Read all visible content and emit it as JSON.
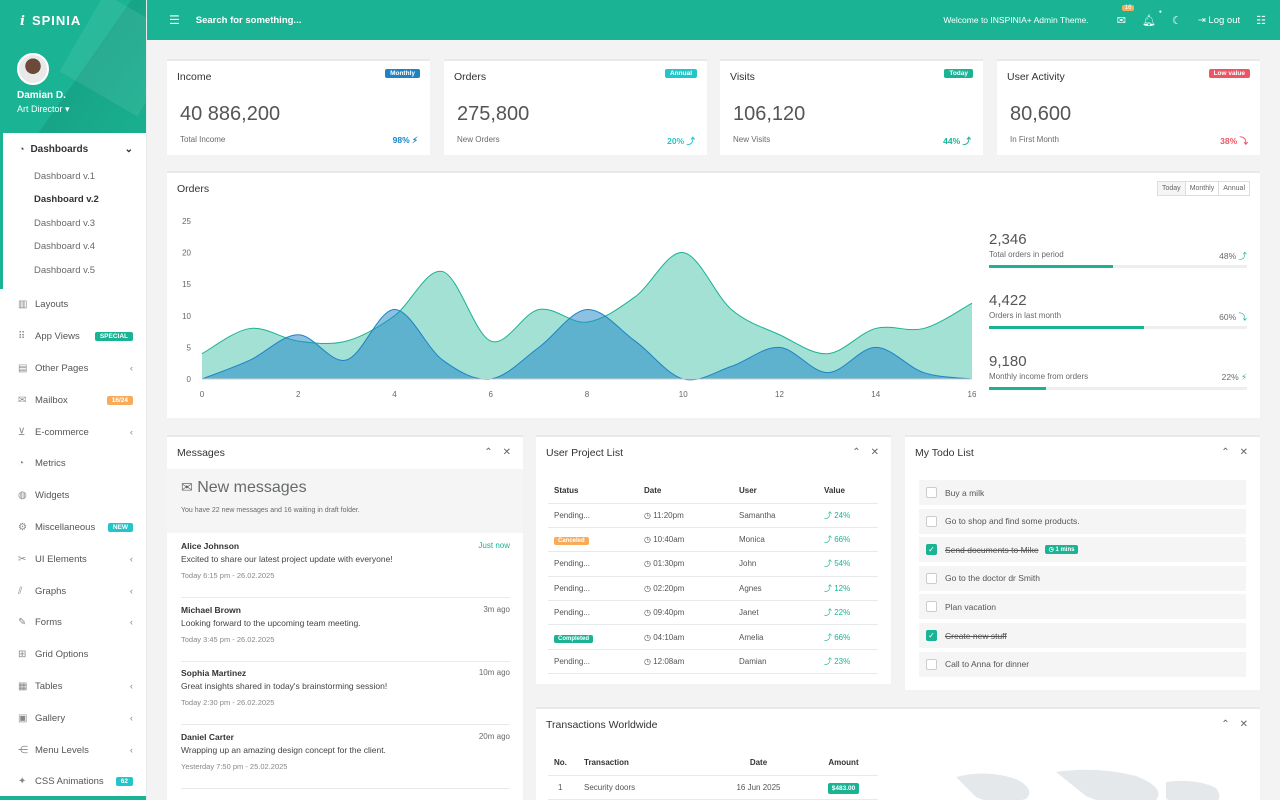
{
  "brand": {
    "name": "SPINIA",
    "mark": "i"
  },
  "user": {
    "name": "Damian D.",
    "role": "Art Director"
  },
  "nav": {
    "group": {
      "label": "Dashboards",
      "items": [
        "Dashboard v.1",
        "Dashboard v.2",
        "Dashboard v.3",
        "Dashboard v.4",
        "Dashboard v.5"
      ],
      "active": "Dashboard v.2"
    },
    "items": [
      {
        "label": "Layouts",
        "icon": "layouts-icon"
      },
      {
        "label": "App Views",
        "icon": "apps-grid-icon",
        "badge": "SPECIAL",
        "badge_color": "#1ab394"
      },
      {
        "label": "Other Pages",
        "icon": "page-icon",
        "chevron": true
      },
      {
        "label": "Mailbox",
        "icon": "mail-icon",
        "badge": "16/24",
        "badge_color": "#f8ac59"
      },
      {
        "label": "E-commerce",
        "icon": "cart-icon",
        "chevron": true
      },
      {
        "label": "Metrics",
        "icon": "pie-icon"
      },
      {
        "label": "Widgets",
        "icon": "globe-icon"
      },
      {
        "label": "Miscellaneous",
        "icon": "gear-icon",
        "badge": "NEW",
        "badge_color": "#23c6c8"
      },
      {
        "label": "UI Elements",
        "icon": "tools-icon",
        "chevron": true
      },
      {
        "label": "Graphs",
        "icon": "chart-icon",
        "chevron": true
      },
      {
        "label": "Forms",
        "icon": "form-icon",
        "chevron": true
      },
      {
        "label": "Grid Options",
        "icon": "grid-icon"
      },
      {
        "label": "Tables",
        "icon": "table-icon",
        "chevron": true
      },
      {
        "label": "Gallery",
        "icon": "image-icon",
        "chevron": true
      },
      {
        "label": "Menu Levels",
        "icon": "share-icon",
        "chevron": true
      },
      {
        "label": "CSS Animations",
        "icon": "magic-icon",
        "badge": "62",
        "badge_color": "#23c6c8"
      }
    ]
  },
  "topbar": {
    "search_placeholder": "Search for something...",
    "welcome": "Welcome to INSPINIA+ Admin Theme.",
    "mail_count": "16",
    "logout": "Log out"
  },
  "stats": [
    {
      "title": "Income",
      "label": "Monthly",
      "label_color": "#1c84c6",
      "value": "40 886,200",
      "sub": "Total Income",
      "pct": "98%",
      "pct_icon": "bolt",
      "pct_color": "#1c84c6"
    },
    {
      "title": "Orders",
      "label": "Annual",
      "label_color": "#23c6c8",
      "value": "275,800",
      "sub": "New Orders",
      "pct": "20%",
      "pct_icon": "up",
      "pct_color": "#23c6c8"
    },
    {
      "title": "Visits",
      "label": "Today",
      "label_color": "#1ab394",
      "value": "106,120",
      "sub": "New Visits",
      "pct": "44%",
      "pct_icon": "up",
      "pct_color": "#1ab394"
    },
    {
      "title": "User Activity",
      "label": "Low value",
      "label_color": "#ed5565",
      "value": "80,600",
      "sub": "In First Month",
      "pct": "38%",
      "pct_icon": "down",
      "pct_color": "#ed5565"
    }
  ],
  "orders": {
    "title": "Orders",
    "ranges": [
      "Today",
      "Monthly",
      "Annual"
    ],
    "side": [
      {
        "value": "2,346",
        "label": "Total orders in period",
        "pct": "48%",
        "dir": "up",
        "progress": 0.48
      },
      {
        "value": "4,422",
        "label": "Orders in last month",
        "pct": "60%",
        "dir": "down",
        "progress": 0.6
      },
      {
        "value": "9,180",
        "label": "Monthly income from orders",
        "pct": "22%",
        "dir": "bolt",
        "progress": 0.22
      }
    ]
  },
  "chart_data": {
    "type": "area",
    "x": [
      0,
      1,
      2,
      3,
      4,
      5,
      6,
      7,
      8,
      9,
      10,
      11,
      12,
      13,
      14,
      15,
      16
    ],
    "xticks": [
      0,
      2,
      4,
      6,
      8,
      10,
      12,
      14,
      16
    ],
    "yticks": [
      0,
      5,
      10,
      15,
      20,
      25
    ],
    "ylim": [
      0,
      25
    ],
    "xlim": [
      0,
      16
    ],
    "series": [
      {
        "values": [
          4,
          8,
          6,
          6,
          10,
          17,
          6,
          11,
          9,
          13,
          20,
          11,
          7,
          4,
          8,
          8,
          12
        ],
        "color": "#1ab394"
      },
      {
        "values": [
          0,
          3,
          7,
          3,
          11,
          3,
          0,
          5,
          11,
          6,
          0,
          2,
          5,
          1,
          5,
          1,
          0
        ],
        "color": "#1c84c6"
      }
    ]
  },
  "messages": {
    "title": "Messages",
    "header": "New messages",
    "subheader": "You have 22 new messages and 16 waiting in draft folder.",
    "items": [
      {
        "name": "Alice Johnson",
        "time": "Just now",
        "text": "Excited to share our latest project update with everyone!",
        "date": "Today 6:15 pm - 26.02.2025"
      },
      {
        "name": "Michael Brown",
        "time": "3m ago",
        "text": "Looking forward to the upcoming team meeting.",
        "date": "Today 3:45 pm - 26.02.2025"
      },
      {
        "name": "Sophia Martinez",
        "time": "10m ago",
        "text": "Great insights shared in today's brainstorming session!",
        "date": "Today 2:30 pm - 26.02.2025"
      },
      {
        "name": "Daniel Carter",
        "time": "20m ago",
        "text": "Wrapping up an amazing design concept for the client.",
        "date": "Yesterday 7:50 pm - 25.02.2025"
      }
    ]
  },
  "projects": {
    "title": "User Project List",
    "columns": [
      "Status",
      "Date",
      "User",
      "Value"
    ],
    "rows": [
      {
        "status": "Pending...",
        "status_type": "text",
        "date": "11:20pm",
        "user": "Samantha",
        "value": "24%"
      },
      {
        "status": "Canceled",
        "status_type": "orange",
        "date": "10:40am",
        "user": "Monica",
        "value": "66%"
      },
      {
        "status": "Pending...",
        "status_type": "text",
        "date": "01:30pm",
        "user": "John",
        "value": "54%"
      },
      {
        "status": "Pending...",
        "status_type": "text",
        "date": "02:20pm",
        "user": "Agnes",
        "value": "12%"
      },
      {
        "status": "Pending...",
        "status_type": "text",
        "date": "09:40pm",
        "user": "Janet",
        "value": "22%"
      },
      {
        "status": "Completed",
        "status_type": "teal",
        "date": "04:10am",
        "user": "Amelia",
        "value": "66%"
      },
      {
        "status": "Pending...",
        "status_type": "text",
        "date": "12:08am",
        "user": "Damian",
        "value": "23%"
      }
    ]
  },
  "todo": {
    "title": "My Todo List",
    "items": [
      {
        "text": "Buy a milk",
        "done": false
      },
      {
        "text": "Go to shop and find some products.",
        "done": false
      },
      {
        "text": "Send documents to Mike",
        "done": true,
        "tag": "1 mins"
      },
      {
        "text": "Go to the doctor dr Smith",
        "done": false
      },
      {
        "text": "Plan vacation",
        "done": false
      },
      {
        "text": "Create new stuff",
        "done": true
      },
      {
        "text": "Call to Anna for dinner",
        "done": false
      }
    ]
  },
  "transactions": {
    "title": "Transactions Worldwide",
    "columns": [
      "No.",
      "Transaction",
      "Date",
      "Amount"
    ],
    "rows": [
      {
        "no": "1",
        "transaction": "Security doors",
        "date": "16 Jun 2025",
        "amount": "$483.00"
      }
    ]
  }
}
